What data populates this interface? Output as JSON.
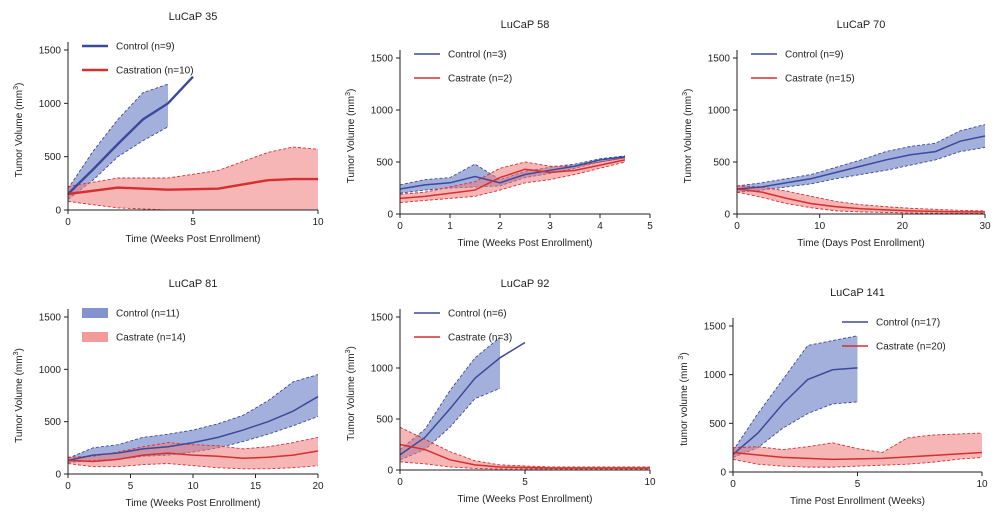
{
  "colors": {
    "control": "#3b4a9a",
    "castrate": "#d62f2f",
    "control_band": "#5a6fbf",
    "castrate_band": "#ef7a7a",
    "axis": "#222222"
  },
  "chart_data": [
    {
      "type": "line",
      "title": "LuCaP 35",
      "xlabel": "Time (Weeks Post Enrollment)",
      "ylabel": "Tumor Volume (mm",
      "ylabel_sup": "3",
      "ylabel_tail": ")",
      "xlim": [
        0,
        10
      ],
      "ylim": [
        0,
        1500
      ],
      "xticks": [
        "0",
        "5",
        "10"
      ],
      "xtick_vals": [
        0,
        5,
        10
      ],
      "yticks": [
        "0",
        "500",
        "1000",
        "1500"
      ],
      "ytick_vals": [
        0,
        500,
        1000,
        1500
      ],
      "legend_position": "top-left",
      "legend_swatch": "line",
      "series": [
        {
          "name": "Control (n=9)",
          "color_key": "control",
          "thick": true,
          "x": [
            0,
            1,
            2,
            3,
            4,
            5
          ],
          "y": [
            150,
            380,
            620,
            850,
            1000,
            1250
          ],
          "band_x": [
            0,
            1,
            2,
            3,
            4
          ],
          "band_upper": [
            200,
            550,
            850,
            1100,
            1180
          ],
          "band_lower": [
            100,
            280,
            500,
            650,
            780
          ]
        },
        {
          "name": "Castration (n=10)",
          "color_key": "castrate",
          "thick": true,
          "x": [
            0,
            2,
            4,
            6,
            8,
            9,
            10
          ],
          "y": [
            150,
            210,
            190,
            200,
            280,
            290,
            290
          ],
          "band_x": [
            0,
            2,
            4,
            6,
            8,
            9,
            10
          ],
          "band_upper": [
            220,
            300,
            300,
            370,
            540,
            590,
            570
          ],
          "band_lower": [
            80,
            20,
            0,
            0,
            0,
            0,
            0
          ]
        }
      ]
    },
    {
      "type": "line",
      "title": "LuCaP 58",
      "xlabel": "Time (Weeks Post Enrollment)",
      "ylabel": "Tumor Volume (mm",
      "ylabel_sup": "3",
      "ylabel_tail": ")",
      "xlim": [
        0,
        5
      ],
      "ylim": [
        0,
        1500
      ],
      "xticks": [
        "0",
        "1",
        "2",
        "3",
        "4",
        "5"
      ],
      "xtick_vals": [
        0,
        1,
        2,
        3,
        4,
        5
      ],
      "yticks": [
        "0",
        "500",
        "1000",
        "1500"
      ],
      "ytick_vals": [
        0,
        500,
        1000,
        1500
      ],
      "legend_position": "top-left",
      "legend_swatch": "line",
      "series": [
        {
          "name": "Control (n=3)",
          "color_key": "control",
          "thick": false,
          "x": [
            0,
            0.5,
            1,
            1.5,
            2,
            2.5,
            3,
            3.5,
            4,
            4.5
          ],
          "y": [
            240,
            280,
            300,
            360,
            300,
            380,
            420,
            460,
            520,
            550
          ],
          "band_x": [
            0,
            0.5,
            1,
            1.5,
            2,
            2.5,
            3,
            3.5,
            4,
            4.5
          ],
          "band_upper": [
            280,
            330,
            350,
            480,
            330,
            410,
            450,
            480,
            530,
            560
          ],
          "band_lower": [
            200,
            230,
            250,
            260,
            270,
            350,
            390,
            440,
            500,
            540
          ]
        },
        {
          "name": "Castrate (n=2)",
          "color_key": "castrate",
          "thick": false,
          "x": [
            0,
            0.5,
            1,
            1.5,
            2,
            2.5,
            3,
            3.5,
            4,
            4.5
          ],
          "y": [
            150,
            170,
            200,
            230,
            350,
            430,
            400,
            420,
            470,
            520
          ],
          "band_x": [
            0,
            0.5,
            1,
            1.5,
            2,
            2.5,
            3,
            3.5,
            4,
            4.5
          ],
          "band_upper": [
            190,
            210,
            260,
            310,
            440,
            500,
            460,
            460,
            500,
            540
          ],
          "band_lower": [
            110,
            130,
            150,
            170,
            230,
            300,
            330,
            380,
            440,
            500
          ]
        }
      ]
    },
    {
      "type": "line",
      "title": "LuCaP 70",
      "xlabel": "Time (Days Post Enrollment)",
      "ylabel": "Tumor Volume (mm",
      "ylabel_sup": "3",
      "ylabel_tail": ")",
      "xlim": [
        0,
        30
      ],
      "ylim": [
        0,
        1500
      ],
      "xticks": [
        "0",
        "10",
        "20",
        "30"
      ],
      "xtick_vals": [
        0,
        10,
        20,
        30
      ],
      "yticks": [
        "0",
        "500",
        "1000",
        "1500"
      ],
      "ytick_vals": [
        0,
        500,
        1000,
        1500
      ],
      "legend_position": "top-left",
      "legend_swatch": "line",
      "series": [
        {
          "name": "Control (n=9)",
          "color_key": "control",
          "thick": false,
          "x": [
            0,
            3,
            6,
            9,
            12,
            15,
            18,
            21,
            24,
            27,
            30
          ],
          "y": [
            240,
            260,
            300,
            340,
            400,
            460,
            520,
            570,
            600,
            700,
            750
          ],
          "band_x": [
            0,
            3,
            6,
            9,
            12,
            15,
            18,
            21,
            24,
            27,
            30
          ],
          "band_upper": [
            270,
            300,
            340,
            380,
            450,
            520,
            600,
            650,
            680,
            800,
            860
          ],
          "band_lower": [
            210,
            230,
            260,
            290,
            340,
            380,
            420,
            470,
            520,
            600,
            640
          ]
        },
        {
          "name": "Castrate (n=15)",
          "color_key": "castrate",
          "thick": false,
          "x": [
            0,
            3,
            6,
            9,
            12,
            15,
            18,
            21,
            24,
            27,
            30
          ],
          "y": [
            240,
            210,
            150,
            100,
            70,
            50,
            40,
            30,
            25,
            20,
            20
          ],
          "band_x": [
            0,
            3,
            6,
            9,
            12,
            15,
            18,
            21,
            24,
            27,
            30
          ],
          "band_upper": [
            270,
            260,
            220,
            170,
            120,
            90,
            70,
            55,
            45,
            35,
            30
          ],
          "band_lower": [
            210,
            160,
            100,
            60,
            30,
            20,
            15,
            10,
            8,
            5,
            5
          ]
        }
      ]
    },
    {
      "type": "line",
      "title": "LuCaP 81",
      "xlabel": "Time (Weeks Post Enrollment)",
      "ylabel": "Tumor Volume (mm",
      "ylabel_sup": "3",
      "ylabel_tail": ")",
      "xlim": [
        0,
        20
      ],
      "ylim": [
        0,
        1500
      ],
      "xticks": [
        "0",
        "5",
        "10",
        "15",
        "20"
      ],
      "xtick_vals": [
        0,
        5,
        10,
        15,
        20
      ],
      "yticks": [
        "0",
        "500",
        "1000",
        "1500"
      ],
      "ytick_vals": [
        0,
        500,
        1000,
        1500
      ],
      "legend_position": "top-left",
      "legend_swatch": "band",
      "series": [
        {
          "name": "Control (n=11)",
          "color_key": "control",
          "thick": false,
          "x": [
            0,
            2,
            4,
            6,
            8,
            10,
            12,
            14,
            16,
            18,
            20
          ],
          "y": [
            130,
            180,
            200,
            240,
            260,
            300,
            350,
            420,
            500,
            600,
            740
          ],
          "band_x": [
            0,
            2,
            4,
            6,
            8,
            10,
            12,
            14,
            16,
            18,
            20
          ],
          "band_upper": [
            150,
            250,
            280,
            350,
            380,
            420,
            480,
            560,
            700,
            880,
            950
          ],
          "band_lower": [
            110,
            130,
            140,
            170,
            180,
            210,
            250,
            310,
            380,
            460,
            550
          ]
        },
        {
          "name": "Castrate (n=14)",
          "color_key": "castrate",
          "thick": false,
          "x": [
            0,
            2,
            4,
            6,
            8,
            10,
            12,
            14,
            16,
            18,
            20
          ],
          "y": [
            130,
            120,
            140,
            180,
            200,
            180,
            170,
            150,
            160,
            180,
            220
          ],
          "band_x": [
            0,
            2,
            4,
            6,
            8,
            10,
            12,
            14,
            16,
            18,
            20
          ],
          "band_upper": [
            160,
            170,
            210,
            260,
            300,
            280,
            270,
            240,
            260,
            300,
            350
          ],
          "band_lower": [
            100,
            70,
            70,
            90,
            100,
            80,
            60,
            50,
            50,
            60,
            80
          ]
        }
      ]
    },
    {
      "type": "line",
      "title": "LuCaP 92",
      "xlabel": "Time (Weeks Post Enrollment)",
      "ylabel": "Tumor Volume (mm",
      "ylabel_sup": "3",
      "ylabel_tail": ")",
      "xlim": [
        0,
        10
      ],
      "ylim": [
        0,
        1500
      ],
      "xticks": [
        "0",
        "5",
        "10"
      ],
      "xtick_vals": [
        0,
        5,
        10
      ],
      "yticks": [
        "0",
        "500",
        "1000",
        "1500"
      ],
      "ytick_vals": [
        0,
        500,
        1000,
        1500
      ],
      "legend_position": "top-left",
      "legend_swatch": "line",
      "series": [
        {
          "name": "Control (n=6)",
          "color_key": "control",
          "thick": false,
          "x": [
            0,
            1,
            2,
            3,
            4,
            5
          ],
          "y": [
            150,
            320,
            600,
            900,
            1100,
            1250
          ],
          "band_x": [
            0,
            1,
            2,
            3,
            4
          ],
          "band_upper": [
            200,
            400,
            780,
            1100,
            1300
          ],
          "band_lower": [
            100,
            200,
            420,
            700,
            800
          ]
        },
        {
          "name": "Castrate (n=3)",
          "color_key": "castrate",
          "thick": false,
          "x": [
            0,
            1,
            2,
            3,
            4,
            5,
            6,
            8,
            10
          ],
          "y": [
            250,
            200,
            100,
            50,
            30,
            25,
            20,
            20,
            20
          ],
          "band_x": [
            0,
            1,
            2,
            3,
            4,
            5,
            6,
            8,
            10
          ],
          "band_upper": [
            420,
            300,
            180,
            90,
            50,
            40,
            30,
            30,
            30
          ],
          "band_lower": [
            80,
            60,
            30,
            15,
            10,
            10,
            10,
            10,
            10
          ]
        }
      ]
    },
    {
      "type": "line",
      "title": "LuCaP 141",
      "xlabel": "Time Post Enrollment (Weeks)",
      "ylabel": "tumor volume (mm ",
      "ylabel_sup": "3",
      "ylabel_tail": ")",
      "xlim": [
        0,
        10
      ],
      "ylim": [
        0,
        1500
      ],
      "xticks": [
        "0",
        "5",
        "10"
      ],
      "xtick_vals": [
        0,
        5,
        10
      ],
      "yticks": [
        "0",
        "500",
        "1000",
        "1500"
      ],
      "ytick_vals": [
        0,
        500,
        1000,
        1500
      ],
      "legend_position": "top-right",
      "legend_swatch": "line",
      "series": [
        {
          "name": "Control (n=17)",
          "color_key": "control",
          "thick": false,
          "x": [
            0,
            1,
            2,
            3,
            4,
            5
          ],
          "y": [
            180,
            400,
            700,
            950,
            1050,
            1070
          ],
          "band_x": [
            0,
            1,
            2,
            3,
            4,
            5
          ],
          "band_upper": [
            220,
            600,
            950,
            1300,
            1350,
            1400
          ],
          "band_lower": [
            150,
            250,
            450,
            600,
            700,
            720
          ]
        },
        {
          "name": "Castrate (n=20)",
          "color_key": "castrate",
          "thick": false,
          "x": [
            0,
            2,
            4,
            6,
            8,
            10
          ],
          "y": [
            200,
            150,
            130,
            140,
            170,
            200
          ],
          "band_x": [
            0,
            1,
            2,
            3,
            4,
            5,
            6,
            7,
            8,
            9,
            10
          ],
          "band_upper": [
            250,
            260,
            230,
            260,
            300,
            240,
            200,
            350,
            380,
            390,
            400
          ],
          "band_lower": [
            130,
            80,
            60,
            50,
            50,
            60,
            70,
            80,
            100,
            130,
            150
          ]
        }
      ]
    }
  ]
}
